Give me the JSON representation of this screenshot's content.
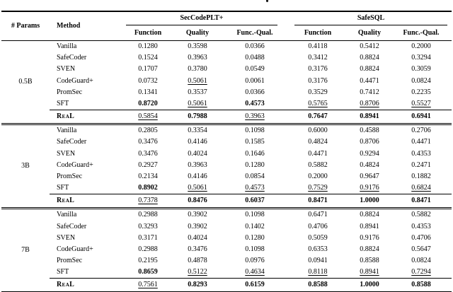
{
  "table": {
    "headers": {
      "params": "# Params",
      "method": "Method",
      "groups": [
        "SecCodePLT+",
        "SafeSQL"
      ],
      "metrics": [
        "Function",
        "Quality",
        "Func.-Qual."
      ]
    },
    "body": [
      {
        "params": "0.5B",
        "rows": [
          {
            "method": "Vanilla",
            "values": [
              "0.1280",
              "0.3598",
              "0.0366",
              "0.4118",
              "0.5412",
              "0.2000"
            ],
            "styles": [
              "p",
              "p",
              "p",
              "p",
              "p",
              "p"
            ]
          },
          {
            "method": "SafeCoder",
            "values": [
              "0.1524",
              "0.3963",
              "0.0488",
              "0.3412",
              "0.8824",
              "0.3294"
            ],
            "styles": [
              "p",
              "p",
              "p",
              "p",
              "p",
              "p"
            ]
          },
          {
            "method": "SVEN",
            "values": [
              "0.1707",
              "0.3780",
              "0.0549",
              "0.3176",
              "0.8824",
              "0.3059"
            ],
            "styles": [
              "p",
              "p",
              "p",
              "p",
              "p",
              "p"
            ]
          },
          {
            "method": "CodeGuard+",
            "values": [
              "0.0732",
              "0.5061",
              "0.0061",
              "0.3176",
              "0.4471",
              "0.0824"
            ],
            "styles": [
              "p",
              "u",
              "p",
              "p",
              "p",
              "p"
            ]
          },
          {
            "method": "PromSec",
            "values": [
              "0.1341",
              "0.3537",
              "0.0366",
              "0.3529",
              "0.7412",
              "0.2235"
            ],
            "styles": [
              "p",
              "p",
              "p",
              "p",
              "p",
              "p"
            ]
          },
          {
            "method": "SFT",
            "values": [
              "0.8720",
              "0.5061",
              "0.4573",
              "0.5765",
              "0.8706",
              "0.5527"
            ],
            "styles": [
              "b",
              "u",
              "b",
              "u",
              "u",
              "u"
            ]
          }
        ],
        "summary": {
          "method": "ReaL",
          "values": [
            "0.5854",
            "0.7988",
            "0.3963",
            "0.7647",
            "0.8941",
            "0.6941"
          ],
          "styles": [
            "u",
            "b",
            "u",
            "b",
            "b",
            "b"
          ]
        }
      },
      {
        "params": "3B",
        "rows": [
          {
            "method": "Vanilla",
            "values": [
              "0.2805",
              "0.3354",
              "0.1098",
              "0.6000",
              "0.4588",
              "0.2706"
            ],
            "styles": [
              "p",
              "p",
              "p",
              "p",
              "p",
              "p"
            ]
          },
          {
            "method": "SafeCoder",
            "values": [
              "0.3476",
              "0.4146",
              "0.1585",
              "0.4824",
              "0.8706",
              "0.4471"
            ],
            "styles": [
              "p",
              "p",
              "p",
              "p",
              "p",
              "p"
            ]
          },
          {
            "method": "SVEN",
            "values": [
              "0.3476",
              "0.4024",
              "0.1646",
              "0.4471",
              "0.9294",
              "0.4353"
            ],
            "styles": [
              "p",
              "p",
              "p",
              "p",
              "p",
              "p"
            ]
          },
          {
            "method": "CodeGuard+",
            "values": [
              "0.2927",
              "0.3963",
              "0.1280",
              "0.5882",
              "0.4824",
              "0.2471"
            ],
            "styles": [
              "p",
              "p",
              "p",
              "p",
              "p",
              "p"
            ]
          },
          {
            "method": "PromSec",
            "values": [
              "0.2134",
              "0.4146",
              "0.0854",
              "0.2000",
              "0.9647",
              "0.1882"
            ],
            "styles": [
              "p",
              "p",
              "p",
              "p",
              "p",
              "p"
            ]
          },
          {
            "method": "SFT",
            "values": [
              "0.8902",
              "0.5061",
              "0.4573",
              "0.7529",
              "0.9176",
              "0.6824"
            ],
            "styles": [
              "b",
              "u",
              "u",
              "u",
              "u",
              "u"
            ]
          }
        ],
        "summary": {
          "method": "ReaL",
          "values": [
            "0.7378",
            "0.8476",
            "0.6037",
            "0.8471",
            "1.0000",
            "0.8471"
          ],
          "styles": [
            "u",
            "b",
            "b",
            "b",
            "b",
            "b"
          ]
        }
      },
      {
        "params": "7B",
        "rows": [
          {
            "method": "Vanilla",
            "values": [
              "0.2988",
              "0.3902",
              "0.1098",
              "0.6471",
              "0.8824",
              "0.5882"
            ],
            "styles": [
              "p",
              "p",
              "p",
              "p",
              "p",
              "p"
            ]
          },
          {
            "method": "SafeCoder",
            "values": [
              "0.3293",
              "0.3902",
              "0.1402",
              "0.4706",
              "0.8941",
              "0.4353"
            ],
            "styles": [
              "p",
              "p",
              "p",
              "p",
              "p",
              "p"
            ]
          },
          {
            "method": "SVEN",
            "values": [
              "0.3171",
              "0.4024",
              "0.1280",
              "0.5059",
              "0.9176",
              "0.4706"
            ],
            "styles": [
              "p",
              "p",
              "p",
              "p",
              "p",
              "p"
            ]
          },
          {
            "method": "CodeGuard+",
            "values": [
              "0.2988",
              "0.3476",
              "0.1098",
              "0.6353",
              "0.8824",
              "0.5647"
            ],
            "styles": [
              "p",
              "p",
              "p",
              "p",
              "p",
              "p"
            ]
          },
          {
            "method": "PromSec",
            "values": [
              "0.2195",
              "0.4878",
              "0.0976",
              "0.0941",
              "0.8588",
              "0.0824"
            ],
            "styles": [
              "p",
              "p",
              "p",
              "p",
              "p",
              "p"
            ]
          },
          {
            "method": "SFT",
            "values": [
              "0.8659",
              "0.5122",
              "0.4634",
              "0.8118",
              "0.8941",
              "0.7294"
            ],
            "styles": [
              "b",
              "u",
              "u",
              "u",
              "u",
              "u"
            ]
          }
        ],
        "summary": {
          "method": "ReaL",
          "values": [
            "0.7561",
            "0.8293",
            "0.6159",
            "0.8588",
            "1.0000",
            "0.8588"
          ],
          "styles": [
            "u",
            "b",
            "b",
            "b",
            "b",
            "b"
          ]
        }
      }
    ]
  }
}
